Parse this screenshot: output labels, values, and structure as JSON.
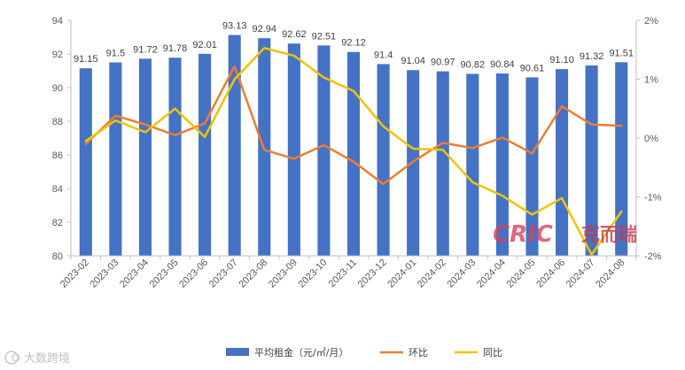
{
  "chart_data": {
    "type": "bar",
    "categories": [
      "2023-02",
      "2023-03",
      "2023-04",
      "2023-05",
      "2023-06",
      "2023-07",
      "2023-08",
      "2023-09",
      "2023-10",
      "2023-11",
      "2023-12",
      "2024-01",
      "2024-02",
      "2024-03",
      "2024-04",
      "2024-05",
      "2024-06",
      "2024-07",
      "2024-08"
    ],
    "series": [
      {
        "name": "平均租金（元/㎡/月）",
        "type": "bar",
        "axis": "left",
        "color": "#4472C4",
        "values": [
          91.15,
          91.5,
          91.72,
          91.78,
          92.01,
          93.13,
          92.94,
          92.62,
          92.51,
          92.12,
          91.4,
          91.04,
          90.97,
          90.82,
          90.84,
          90.61,
          91.1,
          91.32,
          91.51
        ],
        "labels": [
          "91.15",
          "91.5",
          "91.72",
          "91.78",
          "92.01",
          "93.13",
          "92.94",
          "92.62",
          "92.51",
          "92.12",
          "91.4",
          "91.04",
          "90.97",
          "90.82",
          "90.84",
          "90.61",
          "91.10",
          "91.32",
          "91.51"
        ]
      },
      {
        "name": "环比",
        "type": "line",
        "axis": "right",
        "color": "#ED7D31",
        "values": [
          -0.1,
          0.38,
          0.23,
          0.05,
          0.25,
          1.22,
          -0.2,
          -0.35,
          -0.12,
          -0.4,
          -0.78,
          -0.4,
          -0.08,
          -0.17,
          0.01,
          -0.26,
          0.54,
          0.23,
          0.21
        ]
      },
      {
        "name": "同比",
        "type": "line",
        "axis": "right",
        "color": "#F2C200",
        "values": [
          -0.05,
          0.3,
          0.1,
          0.5,
          0.02,
          1.0,
          1.53,
          1.4,
          1.03,
          0.8,
          0.2,
          -0.18,
          -0.2,
          -0.75,
          -0.98,
          -1.3,
          -1.02,
          -1.98,
          -1.25
        ]
      }
    ],
    "y_left": {
      "min": 80,
      "max": 94,
      "step": 2,
      "ticks": [
        "80",
        "82",
        "84",
        "86",
        "88",
        "90",
        "92",
        "94"
      ]
    },
    "y_right": {
      "min": -2,
      "max": 2,
      "step": 1,
      "ticks": [
        "-2%",
        "-1%",
        "0%",
        "1%",
        "2%"
      ]
    },
    "grid": false,
    "legend_position": "bottom",
    "title": "",
    "xlabel": "",
    "ylabel": ""
  },
  "watermarks": {
    "brand": "CRIC",
    "brand_cn": "克而瑞",
    "source": "大数跨境"
  }
}
